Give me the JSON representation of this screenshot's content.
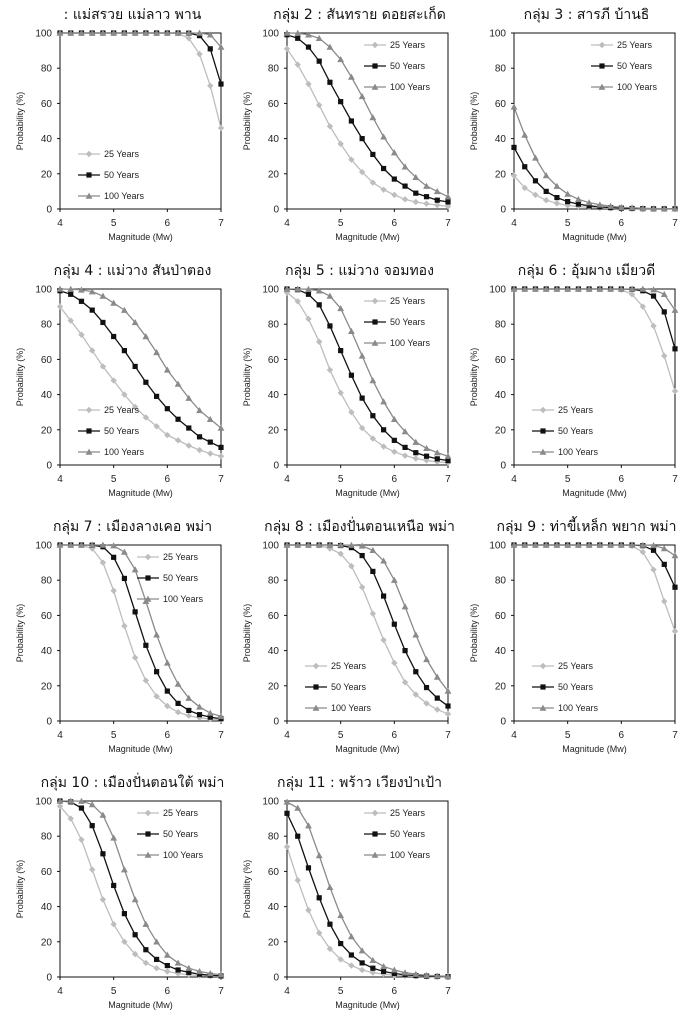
{
  "page": {
    "font_note": ""
  },
  "series_styles": {
    "25 Years": {
      "color": "#bdbdbd",
      "marker": "diamond"
    },
    "50 Years": {
      "color": "#111111",
      "marker": "square"
    },
    "100 Years": {
      "color": "#8a8a8a",
      "marker": "triangle"
    }
  },
  "chart_data": [
    {
      "type": "line",
      "title": ": แม่สรวย แม่ลาว พาน",
      "xlabel": "Magnitude (Mw)",
      "ylabel": "Probability (%)",
      "xlim": [
        4,
        7
      ],
      "ylim": [
        0,
        100
      ],
      "xticks": [
        4,
        5,
        6,
        7
      ],
      "yticks": [
        0,
        20,
        40,
        60,
        80,
        100
      ],
      "legend_position": "bottom-left",
      "x": [
        4.0,
        4.2,
        4.4,
        4.6,
        4.8,
        5.0,
        5.2,
        5.4,
        5.6,
        5.8,
        6.0,
        6.2,
        6.4,
        6.6,
        6.8,
        7.0
      ],
      "series": [
        {
          "name": "25 Years",
          "values": [
            100,
            100,
            100,
            100,
            100,
            100,
            100,
            100,
            100,
            100,
            100,
            99.8,
            97,
            88,
            70,
            46
          ]
        },
        {
          "name": "50 Years",
          "values": [
            100,
            100,
            100,
            100,
            100,
            100,
            100,
            100,
            100,
            100,
            100,
            100,
            99.9,
            98.5,
            91,
            71
          ]
        },
        {
          "name": "100 Years",
          "values": [
            100,
            100,
            100,
            100,
            100,
            100,
            100,
            100,
            100,
            100,
            100,
            100,
            100,
            100,
            99,
            92
          ]
        }
      ]
    },
    {
      "type": "line",
      "title": "กลุ่ม 2 : สันทราย ดอยสะเก็ด",
      "xlabel": "Magnitude (Mw)",
      "ylabel": "Probability (%)",
      "xlim": [
        4,
        7
      ],
      "ylim": [
        0,
        100
      ],
      "xticks": [
        4,
        5,
        6,
        7
      ],
      "yticks": [
        0,
        20,
        40,
        60,
        80,
        100
      ],
      "legend_position": "top-right",
      "x": [
        4.0,
        4.2,
        4.4,
        4.6,
        4.8,
        5.0,
        5.2,
        5.4,
        5.6,
        5.8,
        6.0,
        6.2,
        6.4,
        6.6,
        6.8,
        7.0
      ],
      "series": [
        {
          "name": "25 Years",
          "values": [
            91,
            82,
            71,
            59,
            47,
            37,
            28,
            21,
            15,
            11,
            8,
            5.5,
            4,
            3,
            2.2,
            1.5
          ]
        },
        {
          "name": "50 Years",
          "values": [
            99,
            97,
            92,
            84,
            72,
            61,
            50,
            40,
            31,
            23,
            17,
            13,
            9,
            7,
            5,
            4
          ]
        },
        {
          "name": "100 Years",
          "values": [
            100,
            99.9,
            99,
            97,
            92,
            85,
            75,
            64,
            52,
            41,
            32,
            24,
            18,
            13,
            10,
            7
          ]
        }
      ]
    },
    {
      "type": "line",
      "title": "กลุ่ม 3 : สารภี บ้านธิ",
      "xlabel": "Magnitude (Mw)",
      "ylabel": "Probability (%)",
      "xlim": [
        4,
        7
      ],
      "ylim": [
        0,
        100
      ],
      "xticks": [
        4,
        5,
        6,
        7
      ],
      "yticks": [
        0,
        20,
        40,
        60,
        80,
        100
      ],
      "legend_position": "top-right",
      "x": [
        4.0,
        4.2,
        4.4,
        4.6,
        4.8,
        5.0,
        5.2,
        5.4,
        5.6,
        5.8,
        6.0,
        6.2,
        6.4,
        6.6,
        6.8,
        7.0
      ],
      "series": [
        {
          "name": "25 Years",
          "values": [
            19,
            12,
            8,
            5,
            3.2,
            2,
            1.4,
            0.9,
            0.6,
            0.4,
            0.3,
            0.2,
            0.1,
            0.1,
            0.1,
            0
          ]
        },
        {
          "name": "50 Years",
          "values": [
            35,
            24,
            16,
            10,
            6.5,
            4.2,
            2.8,
            1.8,
            1.2,
            0.8,
            0.5,
            0.3,
            0.2,
            0.1,
            0.1,
            0.1
          ]
        },
        {
          "name": "100 Years",
          "values": [
            58,
            42,
            29,
            19,
            13,
            8.5,
            5.5,
            3.6,
            2.4,
            1.6,
            1,
            0.7,
            0.4,
            0.3,
            0.2,
            0.1
          ]
        }
      ]
    },
    {
      "type": "line",
      "title": "กลุ่ม 4 : แม่วาง สันป่าตอง",
      "xlabel": "Magnitude (Mw)",
      "ylabel": "Probability (%)",
      "xlim": [
        4,
        7
      ],
      "ylim": [
        0,
        100
      ],
      "xticks": [
        4,
        5,
        6,
        7
      ],
      "yticks": [
        0,
        20,
        40,
        60,
        80,
        100
      ],
      "legend_position": "bottom-left",
      "x": [
        4.0,
        4.2,
        4.4,
        4.6,
        4.8,
        5.0,
        5.2,
        5.4,
        5.6,
        5.8,
        6.0,
        6.2,
        6.4,
        6.6,
        6.8,
        7.0
      ],
      "series": [
        {
          "name": "25 Years",
          "values": [
            90,
            82,
            74,
            65,
            56,
            48,
            40,
            33,
            27,
            22,
            17,
            14,
            11,
            8.5,
            6.5,
            5
          ]
        },
        {
          "name": "50 Years",
          "values": [
            99,
            97,
            93,
            88,
            81,
            73,
            65,
            56,
            47,
            39,
            32,
            26,
            21,
            16,
            13,
            10
          ]
        },
        {
          "name": "100 Years",
          "values": [
            100,
            99.9,
            99.5,
            98.5,
            96,
            92,
            88,
            81,
            73,
            64,
            54,
            46,
            38,
            31,
            26,
            21
          ]
        }
      ]
    },
    {
      "type": "line",
      "title": "กลุ่ม 5 : แม่วาง จอมทอง",
      "xlabel": "Magnitude (Mw)",
      "ylabel": "Probability (%)",
      "xlim": [
        4,
        7
      ],
      "ylim": [
        0,
        100
      ],
      "xticks": [
        4,
        5,
        6,
        7
      ],
      "yticks": [
        0,
        20,
        40,
        60,
        80,
        100
      ],
      "legend_position": "top-right",
      "x": [
        4.0,
        4.2,
        4.4,
        4.6,
        4.8,
        5.0,
        5.2,
        5.4,
        5.6,
        5.8,
        6.0,
        6.2,
        6.4,
        6.6,
        6.8,
        7.0
      ],
      "series": [
        {
          "name": "25 Years",
          "values": [
            98,
            93,
            83,
            70,
            54,
            41,
            30,
            21,
            15,
            10.5,
            7.5,
            5.3,
            3.7,
            2.6,
            1.8,
            1.3
          ]
        },
        {
          "name": "50 Years",
          "values": [
            100,
            99.6,
            97,
            91,
            79,
            65,
            51,
            38,
            28,
            20,
            14,
            10,
            7,
            5,
            3.5,
            2.5
          ]
        },
        {
          "name": "100 Years",
          "values": [
            100,
            100,
            99.9,
            99,
            96,
            89,
            76,
            62,
            48,
            36,
            26,
            19,
            13,
            9.5,
            7,
            5
          ]
        }
      ]
    },
    {
      "type": "line",
      "title": "กลุ่ม 6 : อุ้มผาง เมียวดี",
      "xlabel": "Magnitude (Mw)",
      "ylabel": "Probability (%)",
      "xlim": [
        4,
        7
      ],
      "ylim": [
        0,
        100
      ],
      "xticks": [
        4,
        5,
        6,
        7
      ],
      "yticks": [
        0,
        20,
        40,
        60,
        80,
        100
      ],
      "legend_position": "bottom-left",
      "x": [
        4.0,
        4.2,
        4.4,
        4.6,
        4.8,
        5.0,
        5.2,
        5.4,
        5.6,
        5.8,
        6.0,
        6.2,
        6.4,
        6.6,
        6.8,
        7.0
      ],
      "series": [
        {
          "name": "25 Years",
          "values": [
            100,
            100,
            100,
            100,
            100,
            100,
            100,
            100,
            100,
            100,
            99.6,
            97,
            90,
            79,
            62,
            42
          ]
        },
        {
          "name": "50 Years",
          "values": [
            100,
            100,
            100,
            100,
            100,
            100,
            100,
            100,
            100,
            100,
            100,
            99.8,
            99,
            96,
            87,
            66
          ]
        },
        {
          "name": "100 Years",
          "values": [
            100,
            100,
            100,
            100,
            100,
            100,
            100,
            100,
            100,
            100,
            100,
            100,
            100,
            99.6,
            97,
            88
          ]
        }
      ]
    },
    {
      "type": "line",
      "title": "กลุ่ม 7 : เมืองลางเคอ พม่า",
      "xlabel": "Magnitude (Mw)",
      "ylabel": "Probability (%)",
      "xlim": [
        4,
        7
      ],
      "ylim": [
        0,
        100
      ],
      "xticks": [
        4,
        5,
        6,
        7
      ],
      "yticks": [
        0,
        20,
        40,
        60,
        80,
        100
      ],
      "legend_position": "top-right",
      "x": [
        4.0,
        4.2,
        4.4,
        4.6,
        4.8,
        5.0,
        5.2,
        5.4,
        5.6,
        5.8,
        6.0,
        6.2,
        6.4,
        6.6,
        6.8,
        7.0
      ],
      "series": [
        {
          "name": "25 Years",
          "values": [
            100,
            100,
            99.8,
            98,
            90,
            74,
            54,
            36,
            23,
            14,
            8.5,
            5,
            3,
            1.8,
            1.1,
            0.7
          ]
        },
        {
          "name": "50 Years",
          "values": [
            100,
            100,
            100,
            99.9,
            99,
            93,
            81,
            62,
            43,
            28,
            17,
            10,
            6,
            3.6,
            2.2,
            1.3
          ]
        },
        {
          "name": "100 Years",
          "values": [
            100,
            100,
            100,
            100,
            100,
            99.6,
            96,
            86,
            68,
            49,
            33,
            21,
            13,
            8,
            4.5,
            2.6
          ]
        }
      ]
    },
    {
      "type": "line",
      "title": "กลุ่ม 8 : เมืองปั่นตอนเหนือ พม่า",
      "xlabel": "Magnitude (Mw)",
      "ylabel": "Probability (%)",
      "xlim": [
        4,
        7
      ],
      "ylim": [
        0,
        100
      ],
      "xticks": [
        4,
        5,
        6,
        7
      ],
      "yticks": [
        0,
        20,
        40,
        60,
        80,
        100
      ],
      "legend_position": "bottom-left",
      "x": [
        4.0,
        4.2,
        4.4,
        4.6,
        4.8,
        5.0,
        5.2,
        5.4,
        5.6,
        5.8,
        6.0,
        6.2,
        6.4,
        6.6,
        6.8,
        7.0
      ],
      "series": [
        {
          "name": "25 Years",
          "values": [
            100,
            100,
            100,
            99.8,
            98,
            95,
            88,
            76,
            61,
            46,
            33,
            22,
            15,
            10,
            6.5,
            4
          ]
        },
        {
          "name": "50 Years",
          "values": [
            100,
            100,
            100,
            100,
            100,
            99.7,
            98.5,
            94,
            85,
            71,
            55,
            40,
            28,
            19,
            13,
            8.5
          ]
        },
        {
          "name": "100 Years",
          "values": [
            100,
            100,
            100,
            100,
            100,
            100,
            99.9,
            99.5,
            97,
            91,
            80,
            65,
            49,
            35,
            25,
            17
          ]
        }
      ]
    },
    {
      "type": "line",
      "title": "กลุ่ม 9 : ท่าขี้เหล็ก พยาก พม่า",
      "xlabel": "Magnitude (Mw)",
      "ylabel": "Probability (%)",
      "xlim": [
        4,
        7
      ],
      "ylim": [
        0,
        100
      ],
      "xticks": [
        4,
        5,
        6,
        7
      ],
      "yticks": [
        0,
        20,
        40,
        60,
        80,
        100
      ],
      "legend_position": "bottom-left",
      "x": [
        4.0,
        4.2,
        4.4,
        4.6,
        4.8,
        5.0,
        5.2,
        5.4,
        5.6,
        5.8,
        6.0,
        6.2,
        6.4,
        6.6,
        6.8,
        7.0
      ],
      "series": [
        {
          "name": "25 Years",
          "values": [
            100,
            100,
            100,
            100,
            100,
            100,
            100,
            100,
            100,
            100,
            100,
            99.5,
            96,
            86,
            68,
            51
          ]
        },
        {
          "name": "50 Years",
          "values": [
            100,
            100,
            100,
            100,
            100,
            100,
            100,
            100,
            100,
            100,
            100,
            100,
            99.6,
            97,
            89,
            76
          ]
        },
        {
          "name": "100 Years",
          "values": [
            100,
            100,
            100,
            100,
            100,
            100,
            100,
            100,
            100,
            100,
            100,
            100,
            100,
            99.8,
            98,
            94
          ]
        }
      ]
    },
    {
      "type": "line",
      "title": "กลุ่ม 10 : เมืองปั่นตอนใต้ พม่า",
      "xlabel": "Magnitude (Mw)",
      "ylabel": "Probability (%)",
      "xlim": [
        4,
        7
      ],
      "ylim": [
        0,
        100
      ],
      "xticks": [
        4,
        5,
        6,
        7
      ],
      "yticks": [
        0,
        20,
        40,
        60,
        80,
        100
      ],
      "legend_position": "top-right",
      "x": [
        4.0,
        4.2,
        4.4,
        4.6,
        4.8,
        5.0,
        5.2,
        5.4,
        5.6,
        5.8,
        6.0,
        6.2,
        6.4,
        6.6,
        6.8,
        7.0
      ],
      "series": [
        {
          "name": "25 Years",
          "values": [
            97,
            90,
            78,
            61,
            44,
            30,
            20,
            13,
            8,
            5,
            3.2,
            2,
            1.3,
            0.8,
            0.5,
            0.3
          ]
        },
        {
          "name": "50 Years",
          "values": [
            100,
            99.5,
            96,
            86,
            70,
            52,
            36,
            24,
            15.5,
            10,
            6.5,
            4,
            2.6,
            1.6,
            1,
            0.6
          ]
        },
        {
          "name": "100 Years",
          "values": [
            100,
            100,
            99.9,
            98,
            92,
            79,
            61,
            44,
            30,
            20,
            12.5,
            8,
            5,
            3.2,
            2,
            1.3
          ]
        }
      ]
    },
    {
      "type": "line",
      "title": "กลุ่ม 11 : พร้าว เวียงป่าเป้า",
      "xlabel": "Magnitude (Mw)",
      "ylabel": "Probability (%)",
      "xlim": [
        4,
        7
      ],
      "ylim": [
        0,
        100
      ],
      "xticks": [
        4,
        5,
        6,
        7
      ],
      "yticks": [
        0,
        20,
        40,
        60,
        80,
        100
      ],
      "legend_position": "top-right",
      "x": [
        4.0,
        4.2,
        4.4,
        4.6,
        4.8,
        5.0,
        5.2,
        5.4,
        5.6,
        5.8,
        6.0,
        6.2,
        6.4,
        6.6,
        6.8,
        7.0
      ],
      "series": [
        {
          "name": "25 Years",
          "values": [
            74,
            55,
            38,
            25,
            16,
            10,
            6.5,
            4,
            2.5,
            1.6,
            1,
            0.6,
            0.4,
            0.2,
            0.1,
            0.1
          ]
        },
        {
          "name": "50 Years",
          "values": [
            93,
            80,
            62,
            45,
            30,
            19,
            12.5,
            8,
            5,
            3.2,
            2,
            1.3,
            0.8,
            0.5,
            0.3,
            0.2
          ]
        },
        {
          "name": "100 Years",
          "values": [
            99.5,
            96,
            86,
            69,
            51,
            35,
            23,
            15,
            9.5,
            6,
            4,
            2.5,
            1.6,
            1,
            0.6,
            0.4
          ]
        }
      ]
    }
  ]
}
